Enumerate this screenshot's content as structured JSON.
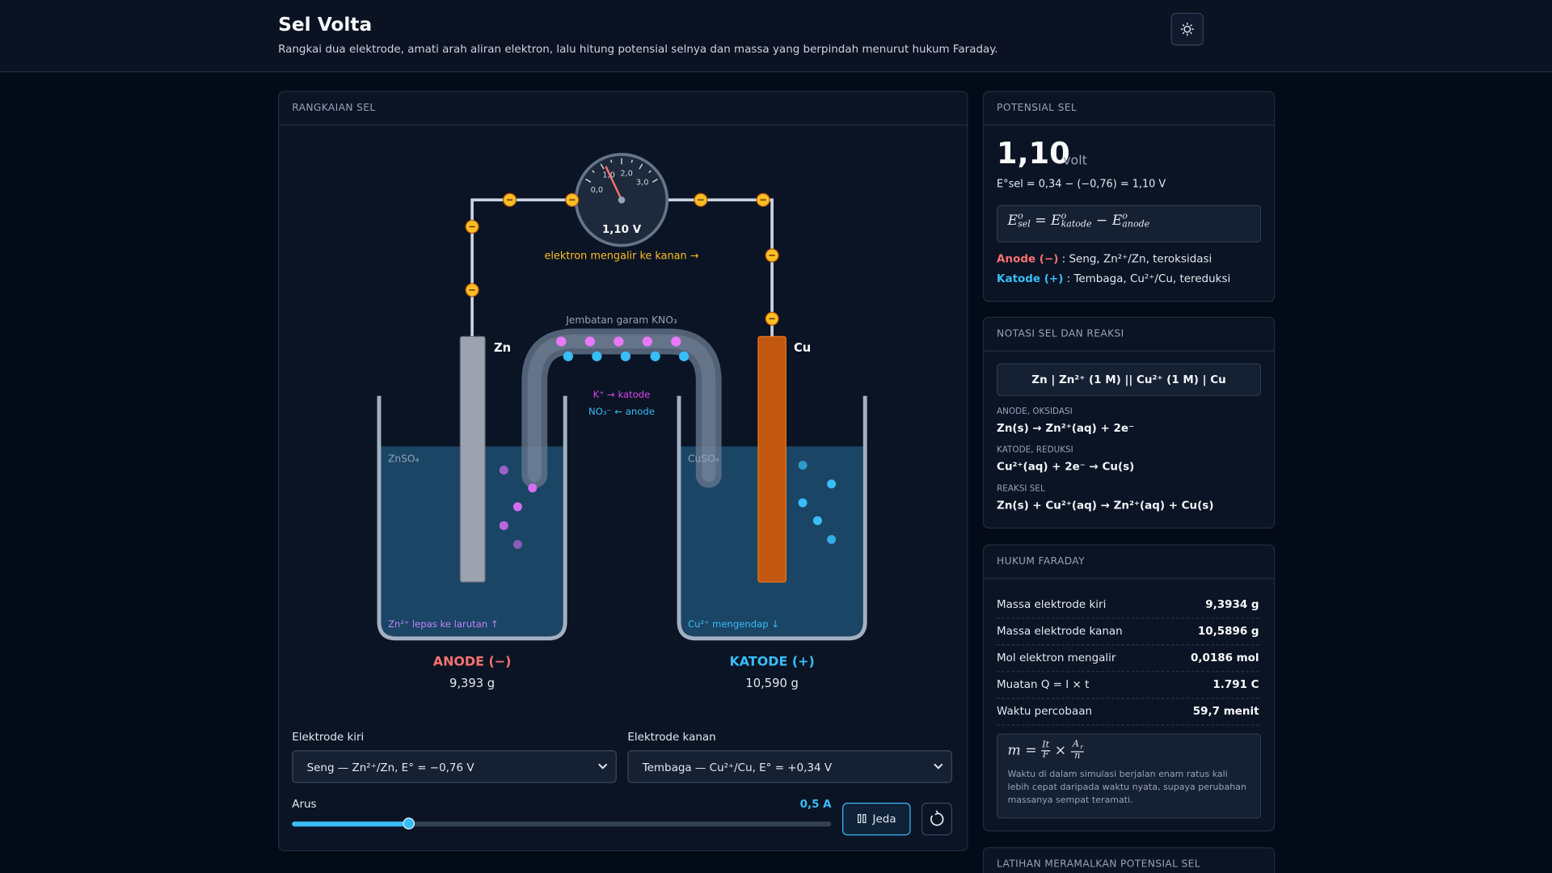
{
  "header": {
    "title": "Sel Volta",
    "subtitle": "Rangkai dua elektrode, amati arah aliran elektron, lalu hitung potensial selnya dan massa yang berpindah menurut hukum Faraday."
  },
  "circuit": {
    "heading": "RANGKAIAN SEL",
    "voltmeter": {
      "ticks": [
        "0,0",
        "1,0",
        "2,0",
        "3,0"
      ],
      "reading": "1,10 V"
    },
    "electron_flow": "elektron mengalir ke kanan →",
    "salt_bridge": {
      "label": "Jembatan garam KNO₃",
      "cation": "K⁺ → katode",
      "anion": "NO₃⁻ ← anode"
    },
    "left": {
      "electrode": "Zn",
      "solution": "ZnSO₄",
      "note": "Zn²⁺ lepas ke larutan ↑",
      "role": "ANODE (−)",
      "mass": "9,393 g"
    },
    "right": {
      "electrode": "Cu",
      "solution": "CuSO₄",
      "note": "Cu²⁺ mengendap ↓",
      "role": "KATODE (+)",
      "mass": "10,590 g"
    }
  },
  "controls": {
    "left_label": "Elektrode kiri",
    "left_value": "Seng — Zn²⁺/Zn, E° = −0,76 V",
    "right_label": "Elektrode kanan",
    "right_value": "Tembaga — Cu²⁺/Cu, E° = +0,34 V",
    "current_label": "Arus",
    "current_value": "0,5 A",
    "pause": "Jeda"
  },
  "potential": {
    "heading": "POTENSIAL SEL",
    "value": "1,10",
    "unit": "volt",
    "equation": "E°sel = 0,34 − (−0,76) = 1,10 V",
    "formula": {
      "lhs": {
        "base": "E",
        "sup": "o",
        "sub": "sel"
      },
      "eq": "=",
      "term1": {
        "base": "E",
        "sup": "o",
        "sub": "katode"
      },
      "minus": "−",
      "term2": {
        "base": "E",
        "sup": "o",
        "sub": "anode"
      }
    },
    "anode_label": "Anode (−)",
    "anode_text": " : Seng, Zn²⁺/Zn, teroksidasi",
    "cathode_label": "Katode (+)",
    "cathode_text": " : Tembaga, Cu²⁺/Cu, tereduksi"
  },
  "notation": {
    "heading": "NOTASI SEL DAN REAKSI",
    "cell": "Zn | Zn²⁺ (1 M) || Cu²⁺ (1 M) | Cu",
    "reactions": [
      {
        "label": "ANODE, OKSIDASI",
        "equation": "Zn(s) → Zn²⁺(aq) + 2e⁻"
      },
      {
        "label": "KATODE, REDUKSI",
        "equation": "Cu²⁺(aq) + 2e⁻ → Cu(s)"
      },
      {
        "label": "REAKSI SEL",
        "equation": "Zn(s) + Cu²⁺(aq) → Zn²⁺(aq) + Cu(s)"
      }
    ]
  },
  "faraday": {
    "heading": "HUKUM FARADAY",
    "rows": [
      [
        "Massa elektrode kiri",
        "9,3934 g"
      ],
      [
        "Massa elektrode kanan",
        "10,5896 g"
      ],
      [
        "Mol elektron mengalir",
        "0,0186 mol"
      ],
      [
        "Muatan Q = I × t",
        "1.791 C"
      ],
      [
        "Waktu percobaan",
        "59,7 menit"
      ]
    ],
    "formula": {
      "lhs": "m",
      "eq": "=",
      "frac1": {
        "num": "It",
        "den": "F"
      },
      "times": "×",
      "frac2": {
        "num": "A",
        "num_sub": "r",
        "den": "n"
      }
    },
    "note": "Waktu di dalam simulasi berjalan enam ratus kali lebih cepat daripada waktu nyata, supaya perubahan massanya sempat teramati."
  },
  "practice": {
    "heading": "LATIHAN MERAMALKAN POTENSIAL SEL"
  }
}
